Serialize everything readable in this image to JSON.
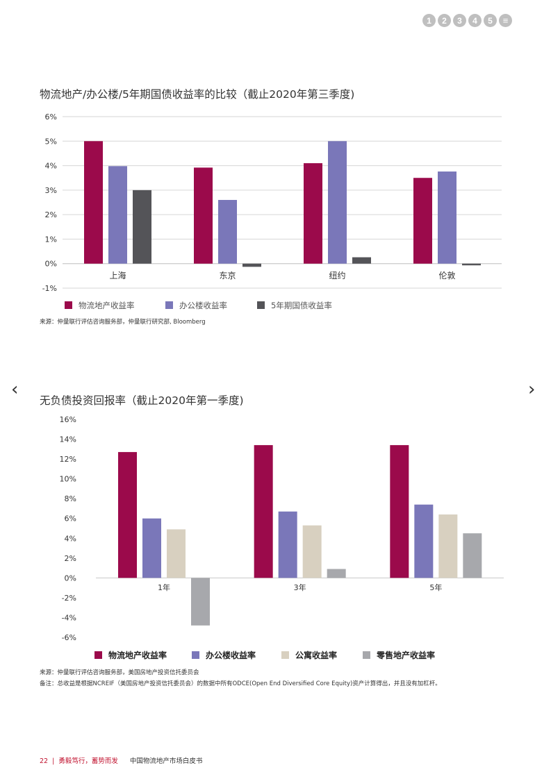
{
  "nav": {
    "items": [
      "1",
      "2",
      "3",
      "4",
      "5"
    ],
    "menu_icon": "≡"
  },
  "arrows": {
    "prev": "‹",
    "next": "›"
  },
  "colors": {
    "logistics": "#9b0a4b",
    "office": "#7a77b9",
    "bond": "#545458",
    "apartment": "#d8d0c0",
    "retail": "#a7a8ac",
    "footer_accent": "#c0102d"
  },
  "chart_data": [
    {
      "type": "bar",
      "title": "物流地产/办公楼/5年期国债收益率的比较（截止2020年第三季度)",
      "categories": [
        "上海",
        "东京",
        "纽约",
        "伦敦"
      ],
      "series": [
        {
          "name": "物流地产收益率",
          "values": [
            5.0,
            3.92,
            4.1,
            3.5
          ]
        },
        {
          "name": "办公楼收益率",
          "values": [
            3.98,
            2.6,
            5.0,
            3.76
          ]
        },
        {
          "name": "5年期国债收益率",
          "values": [
            3.0,
            -0.13,
            0.26,
            -0.07
          ]
        }
      ],
      "ylim": [
        -1,
        6
      ],
      "yticks": [
        "-1%",
        "0%",
        "1%",
        "2%",
        "3%",
        "4%",
        "5%",
        "6%"
      ],
      "grid": true,
      "legend": "bottom",
      "source": "来源：仲量联行评估咨询服务部，仲量联行研究部, Bloomberg"
    },
    {
      "type": "bar",
      "title": "无负债投资回报率（截止2020年第一季度)",
      "categories": [
        "1年",
        "3年",
        "5年"
      ],
      "series": [
        {
          "name": "物流地产收益率",
          "values": [
            12.7,
            13.4,
            13.4
          ]
        },
        {
          "name": "办公楼收益率",
          "values": [
            6.0,
            6.7,
            7.4
          ]
        },
        {
          "name": "公寓收益率",
          "values": [
            4.9,
            5.3,
            6.4
          ]
        },
        {
          "name": "零售地产收益率",
          "values": [
            -4.8,
            0.9,
            4.5
          ]
        }
      ],
      "ylim": [
        -6,
        16
      ],
      "yticks": [
        "-6%",
        "-4%",
        "-2%",
        "0%",
        "2%",
        "4%",
        "6%",
        "8%",
        "10%",
        "12%",
        "14%",
        "16%"
      ],
      "grid": false,
      "legend": "bottom",
      "source": "来源：仲量联行评估咨询服务部，美国房地产投资信托委员会",
      "note": "备注：总收益是根据NCREIF（美国房地产投资信托委员会）的数据中所有ODCE(Open End Diversified Core Equity)资产计算得出，并且没有加杠杆。"
    }
  ],
  "footer": {
    "page_number": "22",
    "separator": "|",
    "slogan": "勇毅笃行，蓄势而发",
    "book_title": "中国物流地产市场白皮书"
  }
}
